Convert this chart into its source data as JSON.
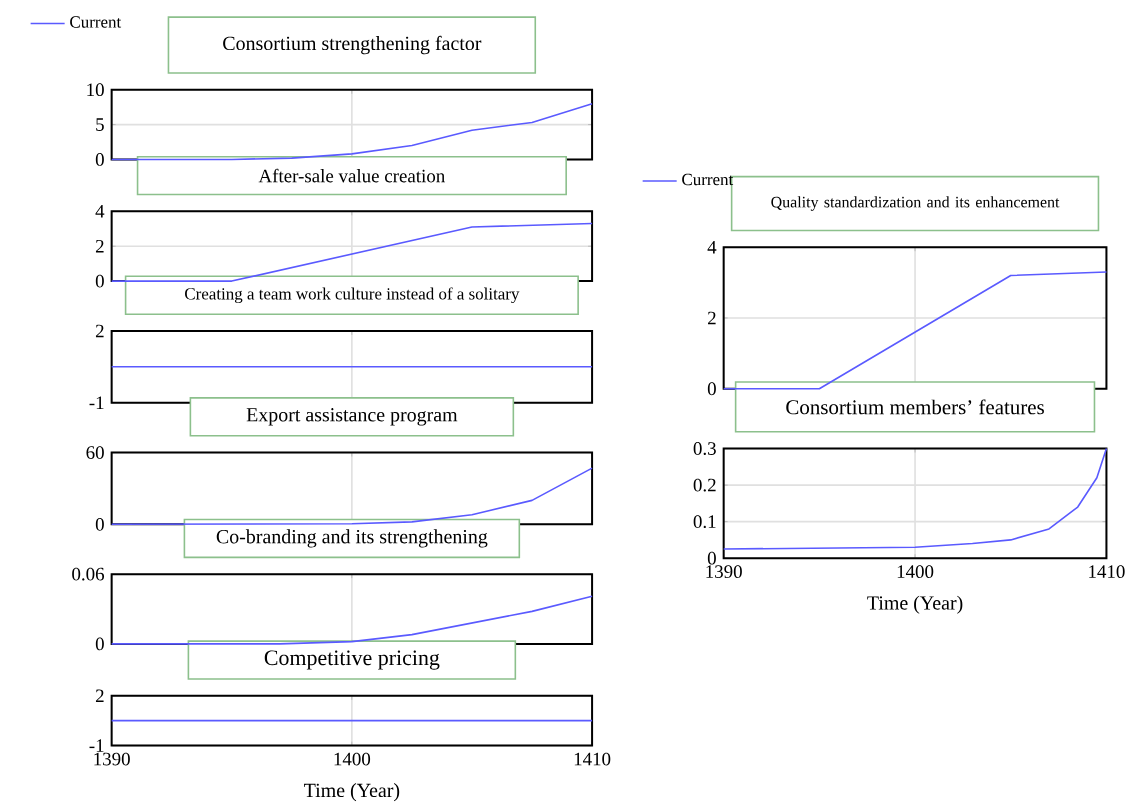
{
  "chart_data": [
    {
      "type": "line",
      "title": "Consortium strengthening factor",
      "x": [
        1390,
        1395,
        1397.5,
        1400,
        1402.5,
        1405,
        1407.5,
        1410
      ],
      "series": [
        {
          "name": "Current",
          "color": "#5a5aff",
          "values": [
            0,
            0,
            0.2,
            0.8,
            2,
            4.2,
            5.3,
            8
          ]
        }
      ],
      "xlim": [
        1390,
        1410
      ],
      "xticks": [
        1390,
        1400,
        1410
      ],
      "ylim": [
        0,
        10
      ],
      "yticks": [
        0,
        5,
        10
      ],
      "grid": true,
      "legend": "top left",
      "tick_labels": "y"
    },
    {
      "type": "line",
      "title": "After-sale value creation",
      "x": [
        1390,
        1395,
        1405,
        1410
      ],
      "series": [
        {
          "color": "#5a5aff",
          "values": [
            0,
            0,
            3.1,
            3.3
          ]
        }
      ],
      "xlim": [
        1390,
        1410
      ],
      "xticks": [
        1390,
        1400,
        1410
      ],
      "ylim": [
        0,
        4
      ],
      "yticks": [
        0,
        2,
        4
      ],
      "grid": true,
      "tick_labels": "y"
    },
    {
      "type": "line",
      "title": "Creating a team work culture instead of a solitary",
      "x": [
        1390,
        1410
      ],
      "series": [
        {
          "color": "#5a5aff",
          "values": [
            0.5,
            0.5
          ]
        }
      ],
      "xlim": [
        1390,
        1410
      ],
      "xticks": [
        1390,
        1400,
        1410
      ],
      "ylim": [
        -1,
        2
      ],
      "yticks": [
        -1,
        2
      ],
      "grid": true,
      "tick_labels": "y"
    },
    {
      "type": "line",
      "title": "Export assistance program",
      "x": [
        1390,
        1400,
        1402.5,
        1405,
        1407.5,
        1410
      ],
      "series": [
        {
          "color": "#5a5aff",
          "values": [
            0,
            0.5,
            2,
            8,
            20,
            47
          ]
        }
      ],
      "xlim": [
        1390,
        1410
      ],
      "xticks": [
        1390,
        1400,
        1410
      ],
      "ylim": [
        0,
        60
      ],
      "yticks": [
        0,
        60
      ],
      "grid": true,
      "tick_labels": "y"
    },
    {
      "type": "line",
      "title": "Co-branding and its strengthening",
      "x": [
        1390,
        1397,
        1400,
        1402.5,
        1405,
        1407.5,
        1410
      ],
      "series": [
        {
          "color": "#5a5aff",
          "values": [
            0,
            0,
            0.002,
            0.008,
            0.018,
            0.028,
            0.041
          ]
        }
      ],
      "xlim": [
        1390,
        1410
      ],
      "xticks": [
        1390,
        1400,
        1410
      ],
      "ylim": [
        0,
        0.06
      ],
      "yticks": [
        0,
        0.06
      ],
      "grid": true,
      "tick_labels": "y"
    },
    {
      "type": "line",
      "title": "Competitive pricing",
      "xlabel": "Time (Year)",
      "x": [
        1390,
        1410
      ],
      "series": [
        {
          "color": "#5a5aff",
          "values": [
            0.5,
            0.5
          ]
        }
      ],
      "xlim": [
        1390,
        1410
      ],
      "xticks": [
        1390,
        1400,
        1410
      ],
      "ylim": [
        -1,
        2
      ],
      "yticks": [
        -1,
        2
      ],
      "grid": true
    },
    {
      "type": "line",
      "title": "Quality standardization and its enhancement",
      "x": [
        1390,
        1395,
        1405,
        1410
      ],
      "series": [
        {
          "name": "Current",
          "color": "#5a5aff",
          "values": [
            0,
            0,
            3.2,
            3.3
          ]
        }
      ],
      "xlim": [
        1390,
        1410
      ],
      "xticks": [
        1390,
        1400,
        1410
      ],
      "ylim": [
        0,
        4
      ],
      "yticks": [
        0,
        2,
        4
      ],
      "grid": true,
      "legend": "top left",
      "tick_labels": "y"
    },
    {
      "type": "line",
      "title": "Consortium members’ features",
      "xlabel": "Time (Year)",
      "x": [
        1390,
        1400,
        1403,
        1405,
        1407,
        1408.5,
        1409.5,
        1410
      ],
      "series": [
        {
          "color": "#5a5aff",
          "values": [
            0.025,
            0.03,
            0.04,
            0.05,
            0.08,
            0.14,
            0.22,
            0.3
          ]
        }
      ],
      "xlim": [
        1390,
        1410
      ],
      "xticks": [
        1390,
        1400,
        1410
      ],
      "ylim": [
        0,
        0.3
      ],
      "yticks": [
        0,
        0.1,
        0.2,
        0.3
      ],
      "grid": true
    }
  ]
}
